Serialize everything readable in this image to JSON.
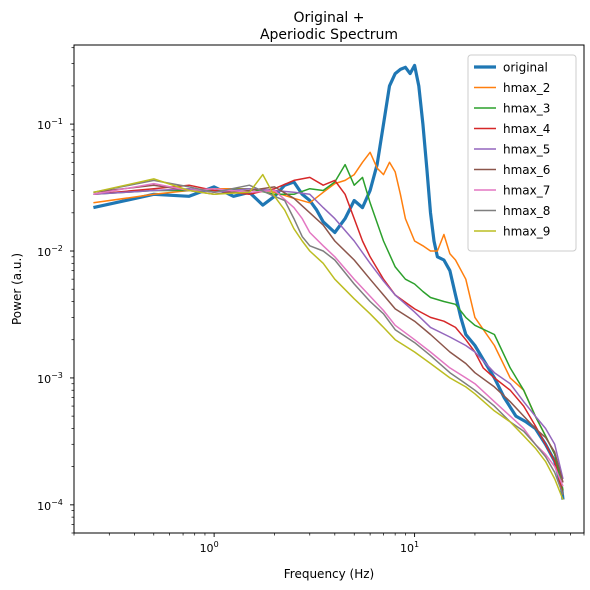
{
  "chart_data": {
    "type": "line",
    "title": "Original +",
    "subtitle": "Aperiodic Spectrum",
    "xlabel": "Frequency (Hz)",
    "ylabel": "Power (a.u.)",
    "x_scale": "log",
    "y_scale": "log",
    "xlim": [
      0.2,
      70
    ],
    "ylim": [
      6e-05,
      0.42
    ],
    "x_ticks": [
      {
        "value": 1,
        "base": "10",
        "exp": "0"
      },
      {
        "value": 10,
        "base": "10",
        "exp": "1"
      }
    ],
    "y_ticks": [
      {
        "value": 0.0001,
        "base": "10",
        "exp": "−4"
      },
      {
        "value": 0.001,
        "base": "10",
        "exp": "−3"
      },
      {
        "value": 0.01,
        "base": "10",
        "exp": "−2"
      },
      {
        "value": 0.1,
        "base": "10",
        "exp": "−1"
      }
    ],
    "grid": false,
    "legend_position": "top-right",
    "series": [
      {
        "name": "original",
        "color": "#1f77b4",
        "width": 3.2,
        "x": [
          0.25,
          0.5,
          0.75,
          1.0,
          1.25,
          1.5,
          1.75,
          2.0,
          2.25,
          2.5,
          2.75,
          3.0,
          3.25,
          3.5,
          4.0,
          4.5,
          5.0,
          5.5,
          6.0,
          6.5,
          7.0,
          7.5,
          8.0,
          8.5,
          9.0,
          9.5,
          10.0,
          10.5,
          11.0,
          11.5,
          12.0,
          12.5,
          13.0,
          14.0,
          15.0,
          16.0,
          17.0,
          18.0,
          20.0,
          22.0,
          25.0,
          28.0,
          32.0,
          36.0,
          40.0,
          45.0,
          50.0,
          54.0,
          55.0
        ],
        "y": [
          0.022,
          0.028,
          0.027,
          0.032,
          0.027,
          0.029,
          0.023,
          0.027,
          0.033,
          0.035,
          0.028,
          0.025,
          0.021,
          0.017,
          0.014,
          0.018,
          0.025,
          0.022,
          0.03,
          0.048,
          0.1,
          0.2,
          0.25,
          0.27,
          0.28,
          0.25,
          0.29,
          0.2,
          0.1,
          0.045,
          0.02,
          0.012,
          0.009,
          0.0085,
          0.007,
          0.0045,
          0.003,
          0.0022,
          0.0018,
          0.0014,
          0.001,
          0.0007,
          0.0005,
          0.00045,
          0.0004,
          0.0003,
          0.00022,
          0.00014,
          0.00011
        ]
      },
      {
        "name": "hmax_2",
        "color": "#ff7f0e",
        "width": 1.5,
        "x": [
          0.25,
          0.5,
          0.75,
          1.0,
          1.5,
          2.0,
          2.5,
          3.0,
          3.5,
          4.0,
          4.5,
          5.0,
          5.5,
          6.0,
          6.5,
          7.0,
          7.5,
          8.0,
          8.5,
          9.0,
          10.0,
          11.0,
          12.0,
          13.0,
          14.0,
          15.0,
          16.0,
          18.0,
          20.0,
          25.0,
          30.0,
          35.0,
          40.0,
          45.0,
          50.0,
          55.0
        ],
        "y": [
          0.024,
          0.028,
          0.03,
          0.031,
          0.031,
          0.029,
          0.026,
          0.024,
          0.029,
          0.034,
          0.036,
          0.04,
          0.05,
          0.06,
          0.045,
          0.04,
          0.05,
          0.042,
          0.028,
          0.018,
          0.012,
          0.011,
          0.01,
          0.01,
          0.0135,
          0.0095,
          0.0085,
          0.006,
          0.003,
          0.0018,
          0.001,
          0.0008,
          0.0005,
          0.00035,
          0.00025,
          0.00013
        ]
      },
      {
        "name": "hmax_3",
        "color": "#2ca02c",
        "width": 1.5,
        "x": [
          0.25,
          0.5,
          0.75,
          1.0,
          1.5,
          2.0,
          2.5,
          3.0,
          3.5,
          4.0,
          4.5,
          5.0,
          5.5,
          6.0,
          7.0,
          8.0,
          9.0,
          10.0,
          11.0,
          12.0,
          14.0,
          16.0,
          18.0,
          20.0,
          25.0,
          30.0,
          35.0,
          40.0,
          45.0,
          50.0,
          55.0
        ],
        "y": [
          0.028,
          0.03,
          0.03,
          0.03,
          0.031,
          0.028,
          0.028,
          0.031,
          0.03,
          0.035,
          0.048,
          0.033,
          0.038,
          0.024,
          0.012,
          0.0075,
          0.006,
          0.0055,
          0.0048,
          0.0043,
          0.004,
          0.0038,
          0.003,
          0.0026,
          0.0022,
          0.0012,
          0.0008,
          0.0005,
          0.00035,
          0.00025,
          0.00013
        ]
      },
      {
        "name": "hmax_4",
        "color": "#d62728",
        "width": 1.5,
        "x": [
          0.25,
          0.5,
          0.75,
          1.0,
          1.5,
          2.0,
          2.5,
          3.0,
          3.5,
          4.0,
          4.5,
          5.0,
          5.5,
          6.0,
          7.0,
          8.0,
          10.0,
          12.0,
          14.0,
          16.0,
          18.0,
          20.0,
          22.0,
          25.0,
          30.0,
          35.0,
          40.0,
          45.0,
          50.0,
          55.0
        ],
        "y": [
          0.028,
          0.031,
          0.033,
          0.03,
          0.028,
          0.031,
          0.036,
          0.038,
          0.033,
          0.036,
          0.028,
          0.018,
          0.012,
          0.009,
          0.006,
          0.0045,
          0.0035,
          0.003,
          0.0028,
          0.0025,
          0.002,
          0.0016,
          0.0012,
          0.001,
          0.0008,
          0.0006,
          0.00042,
          0.0003,
          0.00022,
          0.00012
        ]
      },
      {
        "name": "hmax_5",
        "color": "#9467bd",
        "width": 1.5,
        "x": [
          0.25,
          0.5,
          0.75,
          1.0,
          1.5,
          2.0,
          2.5,
          3.0,
          3.5,
          4.0,
          5.0,
          6.0,
          7.0,
          8.0,
          10.0,
          12.0,
          15.0,
          18.0,
          20.0,
          25.0,
          30.0,
          35.0,
          40.0,
          45.0,
          50.0,
          55.0
        ],
        "y": [
          0.028,
          0.03,
          0.031,
          0.029,
          0.031,
          0.03,
          0.029,
          0.028,
          0.022,
          0.018,
          0.012,
          0.008,
          0.0058,
          0.0045,
          0.0033,
          0.0025,
          0.0021,
          0.0018,
          0.0016,
          0.0011,
          0.0009,
          0.00065,
          0.0005,
          0.0004,
          0.0003,
          0.00016
        ]
      },
      {
        "name": "hmax_6",
        "color": "#8c564b",
        "width": 1.5,
        "x": [
          0.25,
          0.5,
          0.75,
          1.0,
          1.5,
          2.0,
          2.5,
          3.0,
          3.5,
          4.0,
          5.0,
          6.0,
          7.0,
          8.0,
          10.0,
          12.0,
          15.0,
          18.0,
          20.0,
          25.0,
          30.0,
          35.0,
          40.0,
          45.0,
          50.0,
          55.0
        ],
        "y": [
          0.029,
          0.033,
          0.03,
          0.028,
          0.03,
          0.032,
          0.026,
          0.02,
          0.016,
          0.012,
          0.0085,
          0.006,
          0.0045,
          0.0035,
          0.0028,
          0.0022,
          0.0016,
          0.0013,
          0.0011,
          0.00085,
          0.00065,
          0.0005,
          0.0004,
          0.00034,
          0.00026,
          0.00015
        ]
      },
      {
        "name": "hmax_7",
        "color": "#e377c2",
        "width": 1.5,
        "x": [
          0.25,
          0.5,
          0.75,
          1.0,
          1.5,
          2.0,
          2.5,
          2.75,
          3.0,
          3.5,
          4.0,
          5.0,
          6.0,
          7.0,
          8.0,
          10.0,
          12.0,
          15.0,
          18.0,
          20.0,
          25.0,
          30.0,
          35.0,
          40.0,
          45.0,
          50.0,
          55.0
        ],
        "y": [
          0.028,
          0.034,
          0.03,
          0.031,
          0.029,
          0.03,
          0.022,
          0.018,
          0.014,
          0.011,
          0.009,
          0.006,
          0.0044,
          0.0034,
          0.0026,
          0.002,
          0.0016,
          0.0012,
          0.001,
          0.0009,
          0.00065,
          0.0005,
          0.0004,
          0.0003,
          0.00025,
          0.0002,
          0.00014
        ]
      },
      {
        "name": "hmax_8",
        "color": "#7f7f7f",
        "width": 1.5,
        "x": [
          0.25,
          0.5,
          0.75,
          1.0,
          1.5,
          2.0,
          2.25,
          2.5,
          2.75,
          3.0,
          3.5,
          4.0,
          5.0,
          6.0,
          7.0,
          8.0,
          10.0,
          12.0,
          15.0,
          18.0,
          20.0,
          25.0,
          30.0,
          35.0,
          40.0,
          45.0,
          50.0,
          55.0
        ],
        "y": [
          0.029,
          0.036,
          0.032,
          0.029,
          0.033,
          0.027,
          0.025,
          0.018,
          0.013,
          0.011,
          0.01,
          0.0085,
          0.0055,
          0.004,
          0.0032,
          0.0024,
          0.0019,
          0.0015,
          0.0011,
          0.0009,
          0.0008,
          0.0006,
          0.00045,
          0.00038,
          0.0003,
          0.00024,
          0.00018,
          0.00012
        ]
      },
      {
        "name": "hmax_9",
        "color": "#bcbd22",
        "width": 1.5,
        "x": [
          0.25,
          0.5,
          0.75,
          1.0,
          1.5,
          1.75,
          2.0,
          2.25,
          2.5,
          2.75,
          3.0,
          3.5,
          4.0,
          5.0,
          6.0,
          7.0,
          8.0,
          10.0,
          12.0,
          15.0,
          18.0,
          20.0,
          25.0,
          30.0,
          35.0,
          40.0,
          45.0,
          50.0,
          55.0
        ],
        "y": [
          0.029,
          0.037,
          0.03,
          0.028,
          0.029,
          0.04,
          0.027,
          0.021,
          0.015,
          0.012,
          0.01,
          0.008,
          0.006,
          0.0042,
          0.0032,
          0.0025,
          0.002,
          0.0016,
          0.0013,
          0.001,
          0.00085,
          0.00075,
          0.00055,
          0.00045,
          0.00035,
          0.00028,
          0.00022,
          0.00016,
          0.00011
        ]
      }
    ]
  }
}
